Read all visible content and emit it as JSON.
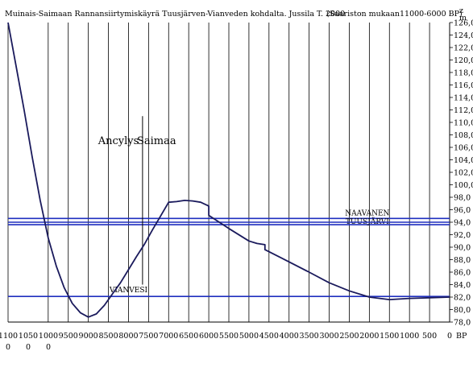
{
  "header": {
    "title": "Muinais-Saimaan Rannansiirtymiskäyrä Tuusjärven-Vianveden kohdalta. Jussila T. 2000",
    "subtitle": "(Saariston mukaan11000-6000 BP)"
  },
  "chart_data": {
    "type": "line",
    "title": "Muinais-Saimaan Rannansiirtymiskäyrä Tuusjärven-Vianveden kohdalta. Jussila T. 2000",
    "subtitle": "(Saariston mukaan11000-6000 BP)",
    "xlabel": "BP",
    "ylabel": "m",
    "ylabel_top": "z",
    "xlim": [
      11000,
      0
    ],
    "ylim": [
      78,
      126
    ],
    "x_reversed": true,
    "y_ticks": [
      78,
      80,
      82,
      84,
      86,
      88,
      90,
      92,
      94,
      96,
      98,
      100,
      102,
      104,
      106,
      108,
      110,
      112,
      114,
      116,
      118,
      120,
      122,
      124,
      126
    ],
    "y_tick_labels": [
      "78,0",
      "80,0",
      "82,0",
      "84,0",
      "86,0",
      "88,0",
      "90,0",
      "92,0",
      "94,0",
      "96,0",
      "98,0",
      "100,0",
      "102,0",
      "104,0",
      "106,0",
      "108,0",
      "110,0",
      "112,0",
      "114,0",
      "116,0",
      "118,0",
      "120,0",
      "122,0",
      "124,0",
      "126,0"
    ],
    "x_ticks": [
      10000,
      9500,
      9000,
      8500,
      8000,
      7500,
      7000,
      6500,
      6000,
      5500,
      5000,
      4500,
      4000,
      3500,
      3000,
      2500,
      2000,
      1500,
      1000,
      500,
      0
    ],
    "x_tick_labels": [
      "9500",
      "9000",
      "8500",
      "8000",
      "7500",
      "7000",
      "6500",
      "6000",
      "5500",
      "5000",
      "4500",
      "4000",
      "3500",
      "3000",
      "2500",
      "2000",
      "1500",
      "1000",
      "500",
      "0"
    ],
    "x_tick_labels_left": [
      "1100",
      "1050",
      "1000"
    ],
    "x_tick_labels_left_row2": [
      "0",
      "0",
      "0"
    ],
    "grid": "vertical",
    "series": [
      {
        "color": "#1a1a5c",
        "x": [
          11000,
          10800,
          10600,
          10400,
          10200,
          10000,
          9800,
          9600,
          9400,
          9200,
          9000,
          8800,
          8600,
          8400,
          8200,
          8000,
          7800,
          7600,
          7400,
          7200,
          7000,
          6800,
          6600,
          6400,
          6200,
          6000,
          6000,
          5500,
          5000,
          4800,
          4600,
          4600,
          4200,
          3500,
          3000,
          2500,
          2000,
          1500,
          1000,
          500,
          0
        ],
        "y": [
          126,
          119,
          112,
          104.5,
          97.5,
          91.5,
          87,
          83.5,
          81,
          79.5,
          78.8,
          79.3,
          80.7,
          82.5,
          84.3,
          86.4,
          88.5,
          90.5,
          92.8,
          95,
          97.2,
          97.3,
          97.5,
          97.4,
          97.2,
          96.6,
          95.1,
          93,
          91,
          90.6,
          90.4,
          89.6,
          88.3,
          86,
          84.3,
          83,
          82,
          81.6,
          81.8,
          81.9,
          82
        ]
      }
    ],
    "reference_lines": [
      {
        "label": "NAAVANEN",
        "y": 94.6,
        "color": "#1f2fbf"
      },
      {
        "label": "TUUSJÄRVI",
        "y": 93.6,
        "color": "#1f2fbf"
      },
      {
        "label": "VIANVESI",
        "y": 82.1,
        "color": "#1f2fbf"
      }
    ],
    "vertical_markers": [
      {
        "x": 7650,
        "y_from": 84,
        "y_to": 111
      }
    ],
    "annotations": [
      {
        "text": "Ancylys",
        "x": 8250,
        "y": 106.5
      },
      {
        "text": "Saimaa",
        "x": 7300,
        "y": 106.5
      }
    ]
  }
}
